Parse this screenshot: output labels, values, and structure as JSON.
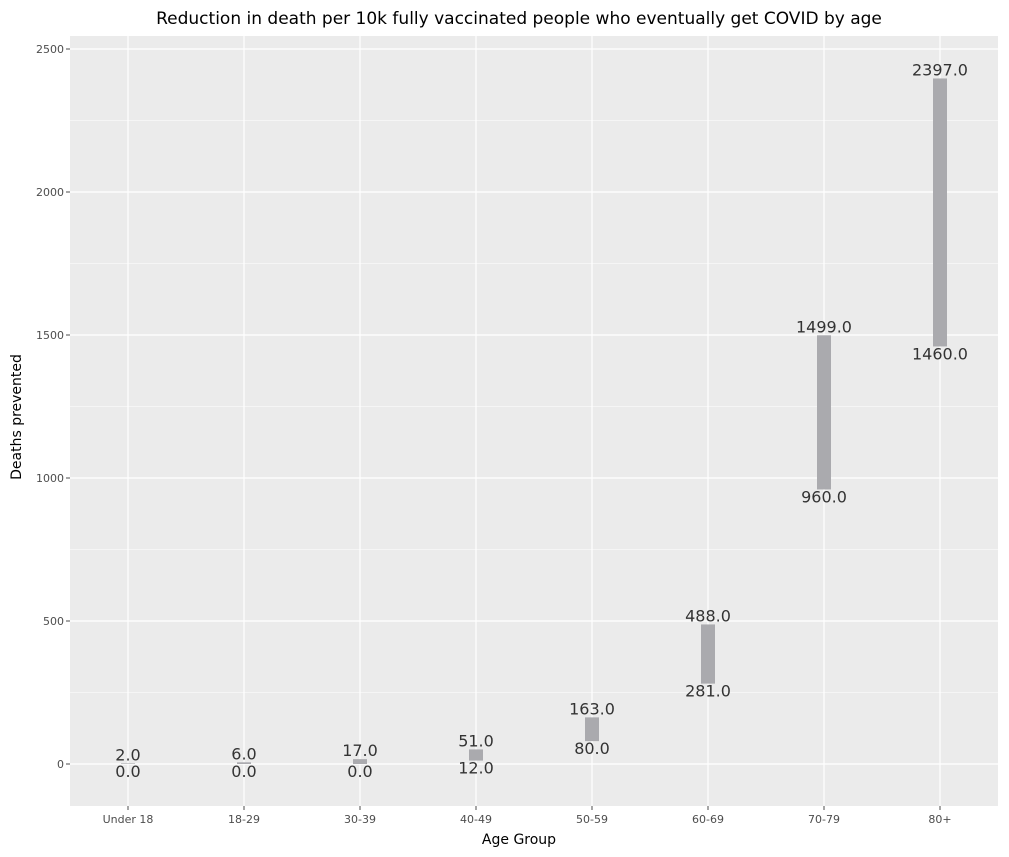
{
  "chart_data": {
    "type": "range-bar",
    "title": "Reduction in death per 10k fully vaccinated people who eventually get COVID by age",
    "xlabel": "Age Group",
    "ylabel": "Deaths prevented",
    "categories": [
      "Under 18",
      "18-29",
      "30-39",
      "40-49",
      "50-59",
      "60-69",
      "70-79",
      "80+"
    ],
    "low": [
      0.0,
      0.0,
      0.0,
      12.0,
      80.0,
      281.0,
      960.0,
      1460.0
    ],
    "high": [
      2.0,
      6.0,
      17.0,
      51.0,
      163.0,
      488.0,
      1499.0,
      2397.0
    ],
    "low_labels": [
      "0.0",
      "0.0",
      "0.0",
      "12.0",
      "80.0",
      "281.0",
      "960.0",
      "1460.0"
    ],
    "high_labels": [
      "2.0",
      "6.0",
      "17.0",
      "51.0",
      "163.0",
      "488.0",
      "1499.0",
      "2397.0"
    ],
    "y_ticks": [
      0,
      500,
      1000,
      1500,
      2000,
      2500
    ],
    "ylim": [
      -145,
      2545
    ],
    "grid": true,
    "legend": "none",
    "colors": {
      "panel": "#ebebeb",
      "grid": "#ffffff",
      "bar": "#aaaaae",
      "tick": "#4d4d4d"
    }
  }
}
